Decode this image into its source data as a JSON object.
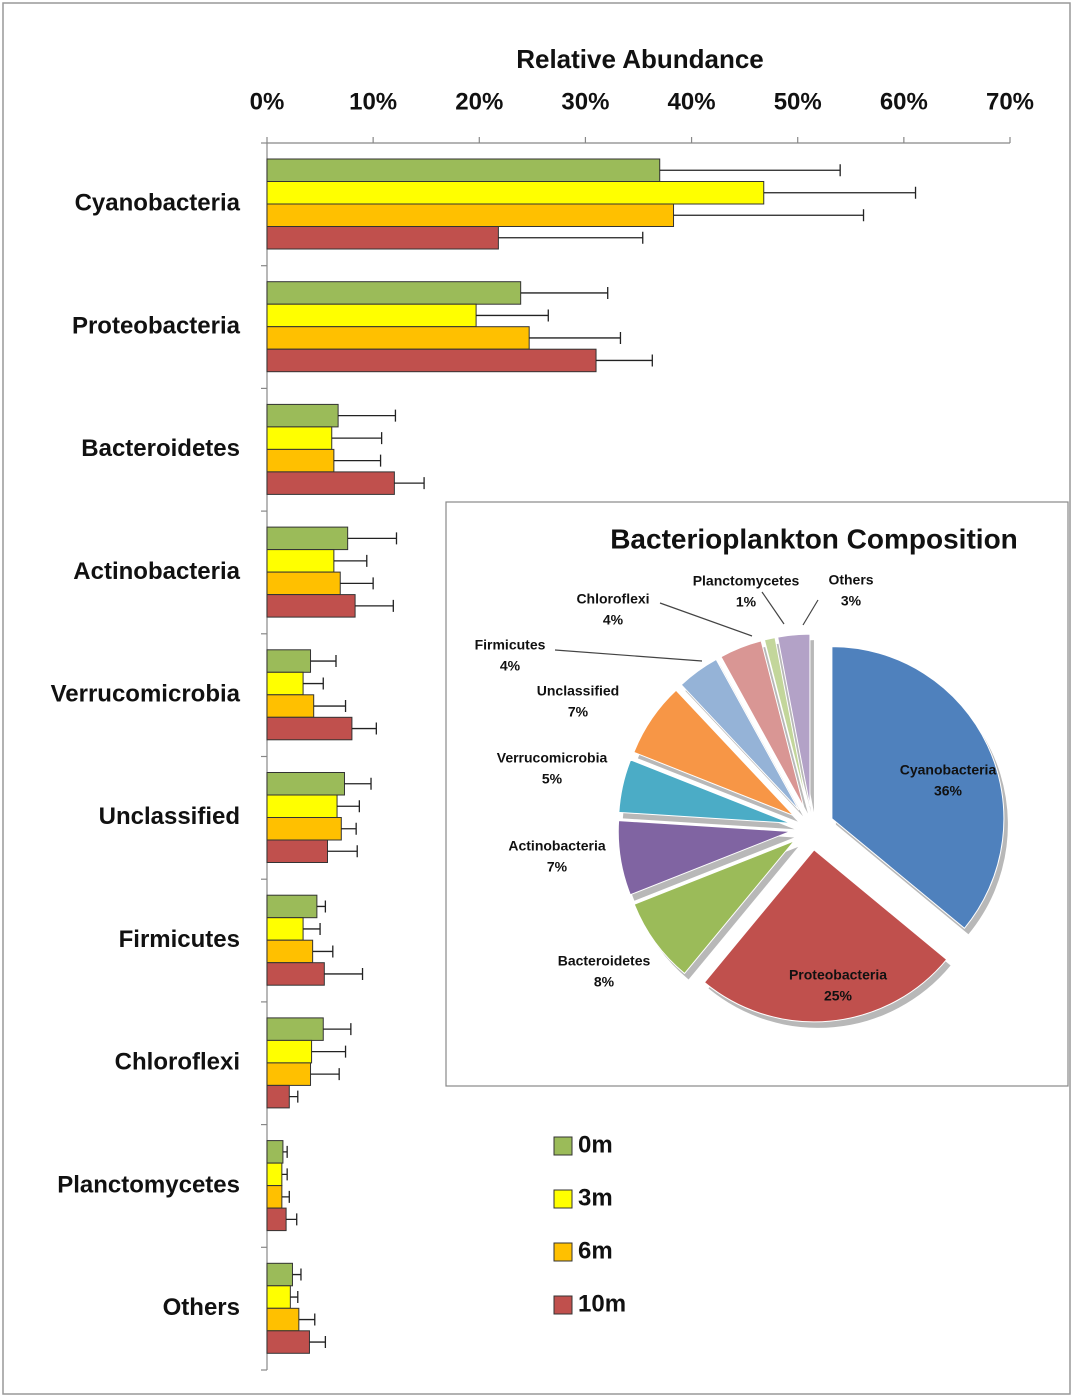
{
  "chart_data": [
    {
      "type": "bar",
      "orientation": "horizontal",
      "title": "Relative Abundance",
      "categories": [
        "Cyanobacteria",
        "Proteobacteria",
        "Bacteroidetes",
        "Actinobacteria",
        "Verrucomicrobia",
        "Unclassified",
        "Firmicutes",
        "Chloroflexi",
        "Planctomycetes",
        "Others"
      ],
      "series": [
        {
          "name": "0m",
          "color": "#9bbb59",
          "values": [
            37.0,
            23.9,
            6.7,
            7.6,
            4.1,
            7.3,
            4.7,
            5.3,
            1.5,
            2.4
          ],
          "errors": [
            17.0,
            8.2,
            5.4,
            4.6,
            2.4,
            2.5,
            0.8,
            2.6,
            0.4,
            0.8
          ]
        },
        {
          "name": "3m",
          "color": "#ffff00",
          "values": [
            46.8,
            19.7,
            6.1,
            6.3,
            3.4,
            6.6,
            3.4,
            4.2,
            1.4,
            2.2
          ],
          "errors": [
            14.3,
            6.8,
            4.7,
            3.1,
            1.9,
            2.1,
            1.6,
            3.2,
            0.5,
            0.7
          ]
        },
        {
          "name": "6m",
          "color": "#ffc000",
          "values": [
            38.3,
            24.7,
            6.3,
            6.9,
            4.4,
            7.0,
            4.3,
            4.1,
            1.4,
            3.0
          ],
          "errors": [
            17.9,
            8.6,
            4.4,
            3.1,
            3.0,
            1.4,
            1.9,
            2.7,
            0.7,
            1.5
          ]
        },
        {
          "name": "10m",
          "color": "#c0504d",
          "values": [
            21.8,
            31.0,
            12.0,
            8.3,
            8.0,
            5.7,
            5.4,
            2.1,
            1.8,
            4.0
          ],
          "errors": [
            13.6,
            5.3,
            2.8,
            3.6,
            2.3,
            2.8,
            3.6,
            0.8,
            1.0,
            1.5
          ]
        }
      ],
      "xlim": [
        0,
        70
      ],
      "xticks": [
        {
          "value": 0,
          "label": "0%"
        },
        {
          "value": 10,
          "label": "10%"
        },
        {
          "value": 20,
          "label": "20%"
        },
        {
          "value": 30,
          "label": "30%"
        },
        {
          "value": 40,
          "label": "40%"
        },
        {
          "value": 50,
          "label": "50%"
        },
        {
          "value": 60,
          "label": "60%"
        },
        {
          "value": 70,
          "label": "70%"
        }
      ]
    },
    {
      "type": "pie",
      "title": "Bacterioplankton Composition",
      "categories": [
        "Cyanobacteria",
        "Proteobacteria",
        "Bacteroidetes",
        "Actinobacteria",
        "Verrucomicrobia",
        "Unclassified",
        "Firmicutes",
        "Chloroflexi",
        "Planctomycetes",
        "Others"
      ],
      "values": [
        36,
        25,
        8,
        7,
        5,
        7,
        4,
        4,
        1,
        3
      ],
      "value_labels": [
        "36%",
        "25%",
        "8%",
        "7%",
        "5%",
        "7%",
        "4%",
        "4%",
        "1%",
        "3%"
      ],
      "colors": [
        "#4f81bd",
        "#c0504d",
        "#9bbb59",
        "#8064a2",
        "#4bacc6",
        "#f79646",
        "#95b3d7",
        "#d99694",
        "#c3d69b",
        "#b3a2c7"
      ]
    }
  ]
}
